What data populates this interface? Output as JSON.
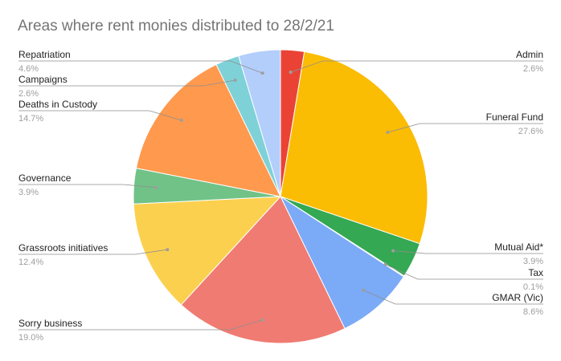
{
  "chart_data": {
    "type": "pie",
    "title": "Areas where rent monies distributed to 28/2/21",
    "slices": [
      {
        "name": "Admin",
        "value": 2.6,
        "label": "2.6%",
        "color": "#ea4335"
      },
      {
        "name": "Funeral Fund",
        "value": 27.6,
        "label": "27.6%",
        "color": "#fbbc04"
      },
      {
        "name": "Mutual Aid*",
        "value": 3.9,
        "label": "3.9%",
        "color": "#34a853"
      },
      {
        "name": "Tax",
        "value": 0.1,
        "label": "0.1%",
        "color": "#ff6d01"
      },
      {
        "name": "GMAR (Vic)",
        "value": 8.6,
        "label": "8.6%",
        "color": "#7baaf7"
      },
      {
        "name": "Sorry business",
        "value": 19.0,
        "label": "19.0%",
        "color": "#f07b72"
      },
      {
        "name": "Grassroots initiatives",
        "value": 12.4,
        "label": "12.4%",
        "color": "#fcd04f"
      },
      {
        "name": "Governance",
        "value": 3.9,
        "label": "3.9%",
        "color": "#71c287"
      },
      {
        "name": "Deaths in Custody",
        "value": 14.7,
        "label": "14.7%",
        "color": "#ff994d"
      },
      {
        "name": "Campaigns",
        "value": 2.6,
        "label": "2.6%",
        "color": "#7ed1d7"
      },
      {
        "name": "Repatriation",
        "value": 4.6,
        "label": "4.6%",
        "color": "#b3cefb"
      }
    ],
    "legend": "labels with leader lines"
  }
}
